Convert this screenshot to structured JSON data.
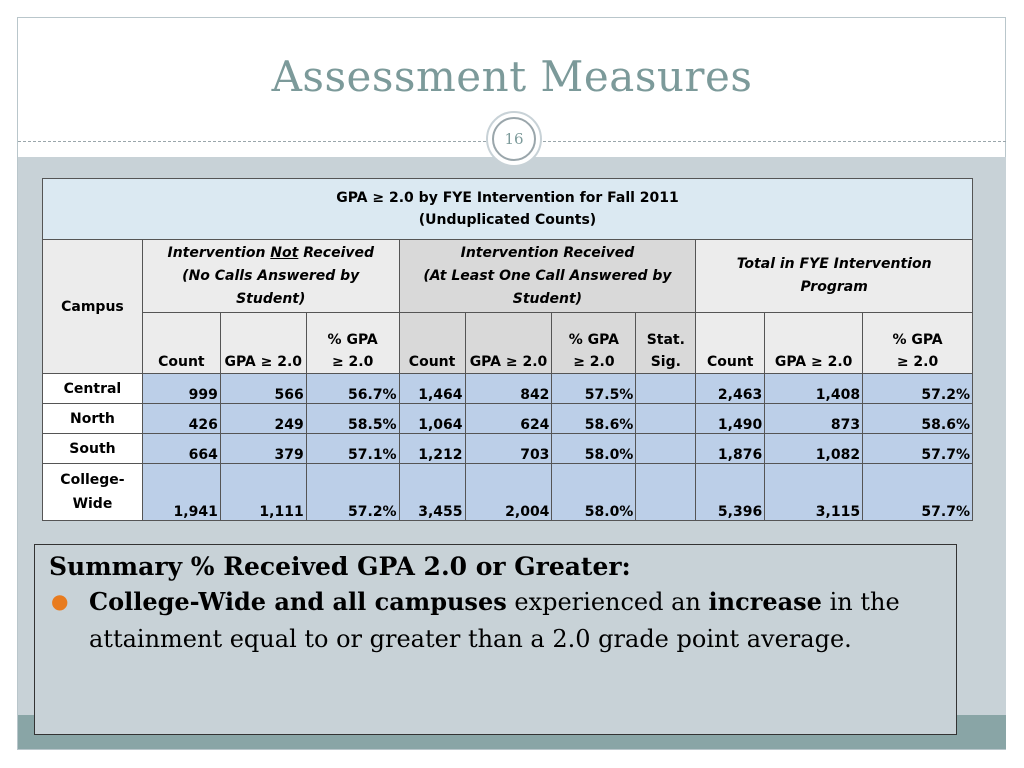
{
  "slide": {
    "title": "Assessment Measures",
    "number": "16"
  },
  "table": {
    "caption_line1": "GPA  ≥ 2.0 by FYE Intervention for Fall 2011",
    "caption_line2": "(Unduplicated Counts)",
    "campus_header": "Campus",
    "groups": {
      "not_received": {
        "prefix": "Intervention ",
        "emphasis": "Not",
        "suffix": " Received",
        "line2": "(No Calls Answered by",
        "line3": "Student)"
      },
      "received": {
        "line1": "Intervention Received",
        "line2": "(At Least One Call Answered by",
        "line3": "Student)"
      },
      "total": {
        "line1": "Total in FYE Intervention",
        "line2": "Program"
      }
    },
    "subheaders": {
      "count": "Count",
      "gpa": "GPA ≥ 2.0",
      "pct_line1": "% GPA",
      "pct_line2": "≥ 2.0",
      "stat_line1": "Stat.",
      "stat_line2": "Sig."
    },
    "rows": [
      {
        "campus": "Central",
        "nr_count": "999",
        "nr_gpa": "566",
        "nr_pct": "56.7%",
        "r_count": "1,464",
        "r_gpa": "842",
        "r_pct": "57.5%",
        "stat": "",
        "t_count": "2,463",
        "t_gpa": "1,408",
        "t_pct": "57.2%"
      },
      {
        "campus": "North",
        "nr_count": "426",
        "nr_gpa": "249",
        "nr_pct": "58.5%",
        "r_count": "1,064",
        "r_gpa": "624",
        "r_pct": "58.6%",
        "stat": "",
        "t_count": "1,490",
        "t_gpa": "873",
        "t_pct": "58.6%"
      },
      {
        "campus": "South",
        "nr_count": "664",
        "nr_gpa": "379",
        "nr_pct": "57.1%",
        "r_count": "1,212",
        "r_gpa": "703",
        "r_pct": "58.0%",
        "stat": "",
        "t_count": "1,876",
        "t_gpa": "1,082",
        "t_pct": "57.7%"
      },
      {
        "campus_line1": "College-",
        "campus_line2": "Wide",
        "nr_count": "1,941",
        "nr_gpa": "1,111",
        "nr_pct": "57.2%",
        "r_count": "3,455",
        "r_gpa": "2,004",
        "r_pct": "58.0%",
        "stat": "",
        "t_count": "5,396",
        "t_gpa": "3,115",
        "t_pct": "57.7%"
      }
    ]
  },
  "summary": {
    "heading": "Summary % Received GPA 2.0 or Greater:",
    "bullet_bold1": "College-Wide and all campuses",
    "bullet_text1": " experienced an ",
    "bullet_bold2": "increase",
    "bullet_text2": " in the attainment equal to or greater than a 2.0 grade point average."
  },
  "colors": {
    "title": "#7c9a9a",
    "bullet": "#e87b1e",
    "data_cell": "#bccfe8",
    "caption_bg": "#dbe9f2",
    "content_bg": "#c8d2d7",
    "bottom_band": "#89a5a6"
  }
}
